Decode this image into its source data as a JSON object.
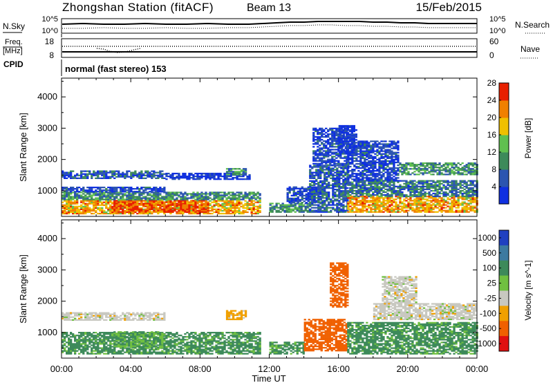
{
  "header": {
    "station": "Zhongshan Station (fitACF)",
    "beam": "Beam 13",
    "date": "15/Feb/2015"
  },
  "top_panels": {
    "nsky_label": "N.Sky",
    "nsearch_label": "N.Search",
    "nsky_ticks": [
      "10^5",
      "10^0"
    ],
    "nsearch_ticks": [
      "10^5",
      "10^0"
    ],
    "freq_label": "Freq.",
    "freq_unit": "[MHz]",
    "freq_ticks": [
      "18",
      "8"
    ],
    "nave_label": "Nave",
    "nave_ticks": [
      "60",
      "0"
    ],
    "cpid_label": "CPID",
    "cpid_value": "normal (fast stereo) 153"
  },
  "x_axis": {
    "label": "Time UT",
    "ticks": [
      "00:00",
      "04:00",
      "08:00",
      "12:00",
      "16:00",
      "20:00",
      "00:00"
    ]
  },
  "chart_data": [
    {
      "type": "heatmap",
      "quantity": "Power",
      "ylabel": "Slant Range [km]",
      "xlabel": "Time UT",
      "yticks": [
        1000,
        2000,
        3000,
        4000
      ],
      "ylim": [
        180,
        4600
      ],
      "xlim_hours": [
        0,
        24
      ],
      "colorbar_label": "Power [dB]",
      "colorbar_ticks": [
        4,
        8,
        12,
        16,
        20,
        24,
        28
      ],
      "colorbar_colors": [
        "#1030e0",
        "#2c55b0",
        "#3d8a5a",
        "#60c050",
        "#f0c000",
        "#f08000",
        "#e82000"
      ],
      "regions": [
        {
          "t0": 0.0,
          "t1": 11.5,
          "r0": 250,
          "r1": 700,
          "level": 24
        },
        {
          "t0": 3.0,
          "t1": 8.5,
          "r0": 300,
          "r1": 700,
          "level": 28
        },
        {
          "t0": 0.0,
          "t1": 11.5,
          "r0": 700,
          "r1": 950,
          "level": 14
        },
        {
          "t0": 0.0,
          "t1": 6.0,
          "r0": 950,
          "r1": 1100,
          "level": 8
        },
        {
          "t0": 0.0,
          "t1": 6.0,
          "r0": 1380,
          "r1": 1650,
          "level": 10
        },
        {
          "t0": 6.0,
          "t1": 10.8,
          "r0": 1350,
          "r1": 1550,
          "level": 6
        },
        {
          "t0": 9.5,
          "t1": 10.6,
          "r0": 1500,
          "r1": 1700,
          "level": 14
        },
        {
          "t0": 12.0,
          "t1": 14.3,
          "r0": 300,
          "r1": 600,
          "level": 14
        },
        {
          "t0": 13.0,
          "t1": 15.0,
          "r0": 600,
          "r1": 1100,
          "level": 8
        },
        {
          "t0": 14.3,
          "t1": 16.5,
          "r0": 300,
          "r1": 1800,
          "level": 10
        },
        {
          "t0": 14.5,
          "t1": 16.5,
          "r0": 1800,
          "r1": 3000,
          "level": 8
        },
        {
          "t0": 16.5,
          "t1": 24.0,
          "r0": 300,
          "r1": 800,
          "level": 24
        },
        {
          "t0": 16.5,
          "t1": 24.0,
          "r0": 800,
          "r1": 1300,
          "level": 12
        },
        {
          "t0": 16.5,
          "t1": 19.5,
          "r0": 1300,
          "r1": 2600,
          "level": 8
        },
        {
          "t0": 19.5,
          "t1": 24.0,
          "r0": 1500,
          "r1": 1900,
          "level": 14
        },
        {
          "t0": 16.0,
          "t1": 17.0,
          "r0": 2200,
          "r1": 3100,
          "level": 6
        }
      ]
    },
    {
      "type": "heatmap",
      "quantity": "Velocity",
      "ylabel": "Slant Range [km]",
      "xlabel": "Time UT",
      "yticks": [
        1000,
        2000,
        3000,
        4000
      ],
      "ylim": [
        180,
        4600
      ],
      "xlim_hours": [
        0,
        24
      ],
      "colorbar_label": "Velocity [m s^-1]",
      "colorbar_ticks": [
        "1000",
        "500",
        "100",
        "25",
        "-25",
        "-100",
        "-500",
        "-1000"
      ],
      "colorbar_colors": [
        "#2040c0",
        "#3d7aa0",
        "#3d8a5a",
        "#70c040",
        "#c8c8c0",
        "#f0a000",
        "#f06000",
        "#e01010"
      ],
      "regions": [
        {
          "t0": 0.0,
          "t1": 11.5,
          "r0": 300,
          "r1": 1000,
          "level": 80
        },
        {
          "t0": 0.0,
          "t1": 6.0,
          "r0": 1380,
          "r1": 1650,
          "level": 0
        },
        {
          "t0": 3.0,
          "t1": 6.0,
          "r0": 500,
          "r1": 1000,
          "level": 60
        },
        {
          "t0": 9.5,
          "t1": 10.6,
          "r0": 1400,
          "r1": 1700,
          "level": -50
        },
        {
          "t0": 12.0,
          "t1": 14.0,
          "r0": 300,
          "r1": 700,
          "level": 80
        },
        {
          "t0": 14.0,
          "t1": 16.5,
          "r0": 400,
          "r1": 1400,
          "level": -200
        },
        {
          "t0": 15.5,
          "t1": 16.5,
          "r0": 1800,
          "r1": 3200,
          "level": -300
        },
        {
          "t0": 16.5,
          "t1": 24.0,
          "r0": 300,
          "r1": 1300,
          "level": 80
        },
        {
          "t0": 18.0,
          "t1": 24.0,
          "r0": 1400,
          "r1": 1900,
          "level": 0
        },
        {
          "t0": 18.5,
          "t1": 20.5,
          "r0": 1900,
          "r1": 2800,
          "level": 0
        }
      ]
    }
  ]
}
